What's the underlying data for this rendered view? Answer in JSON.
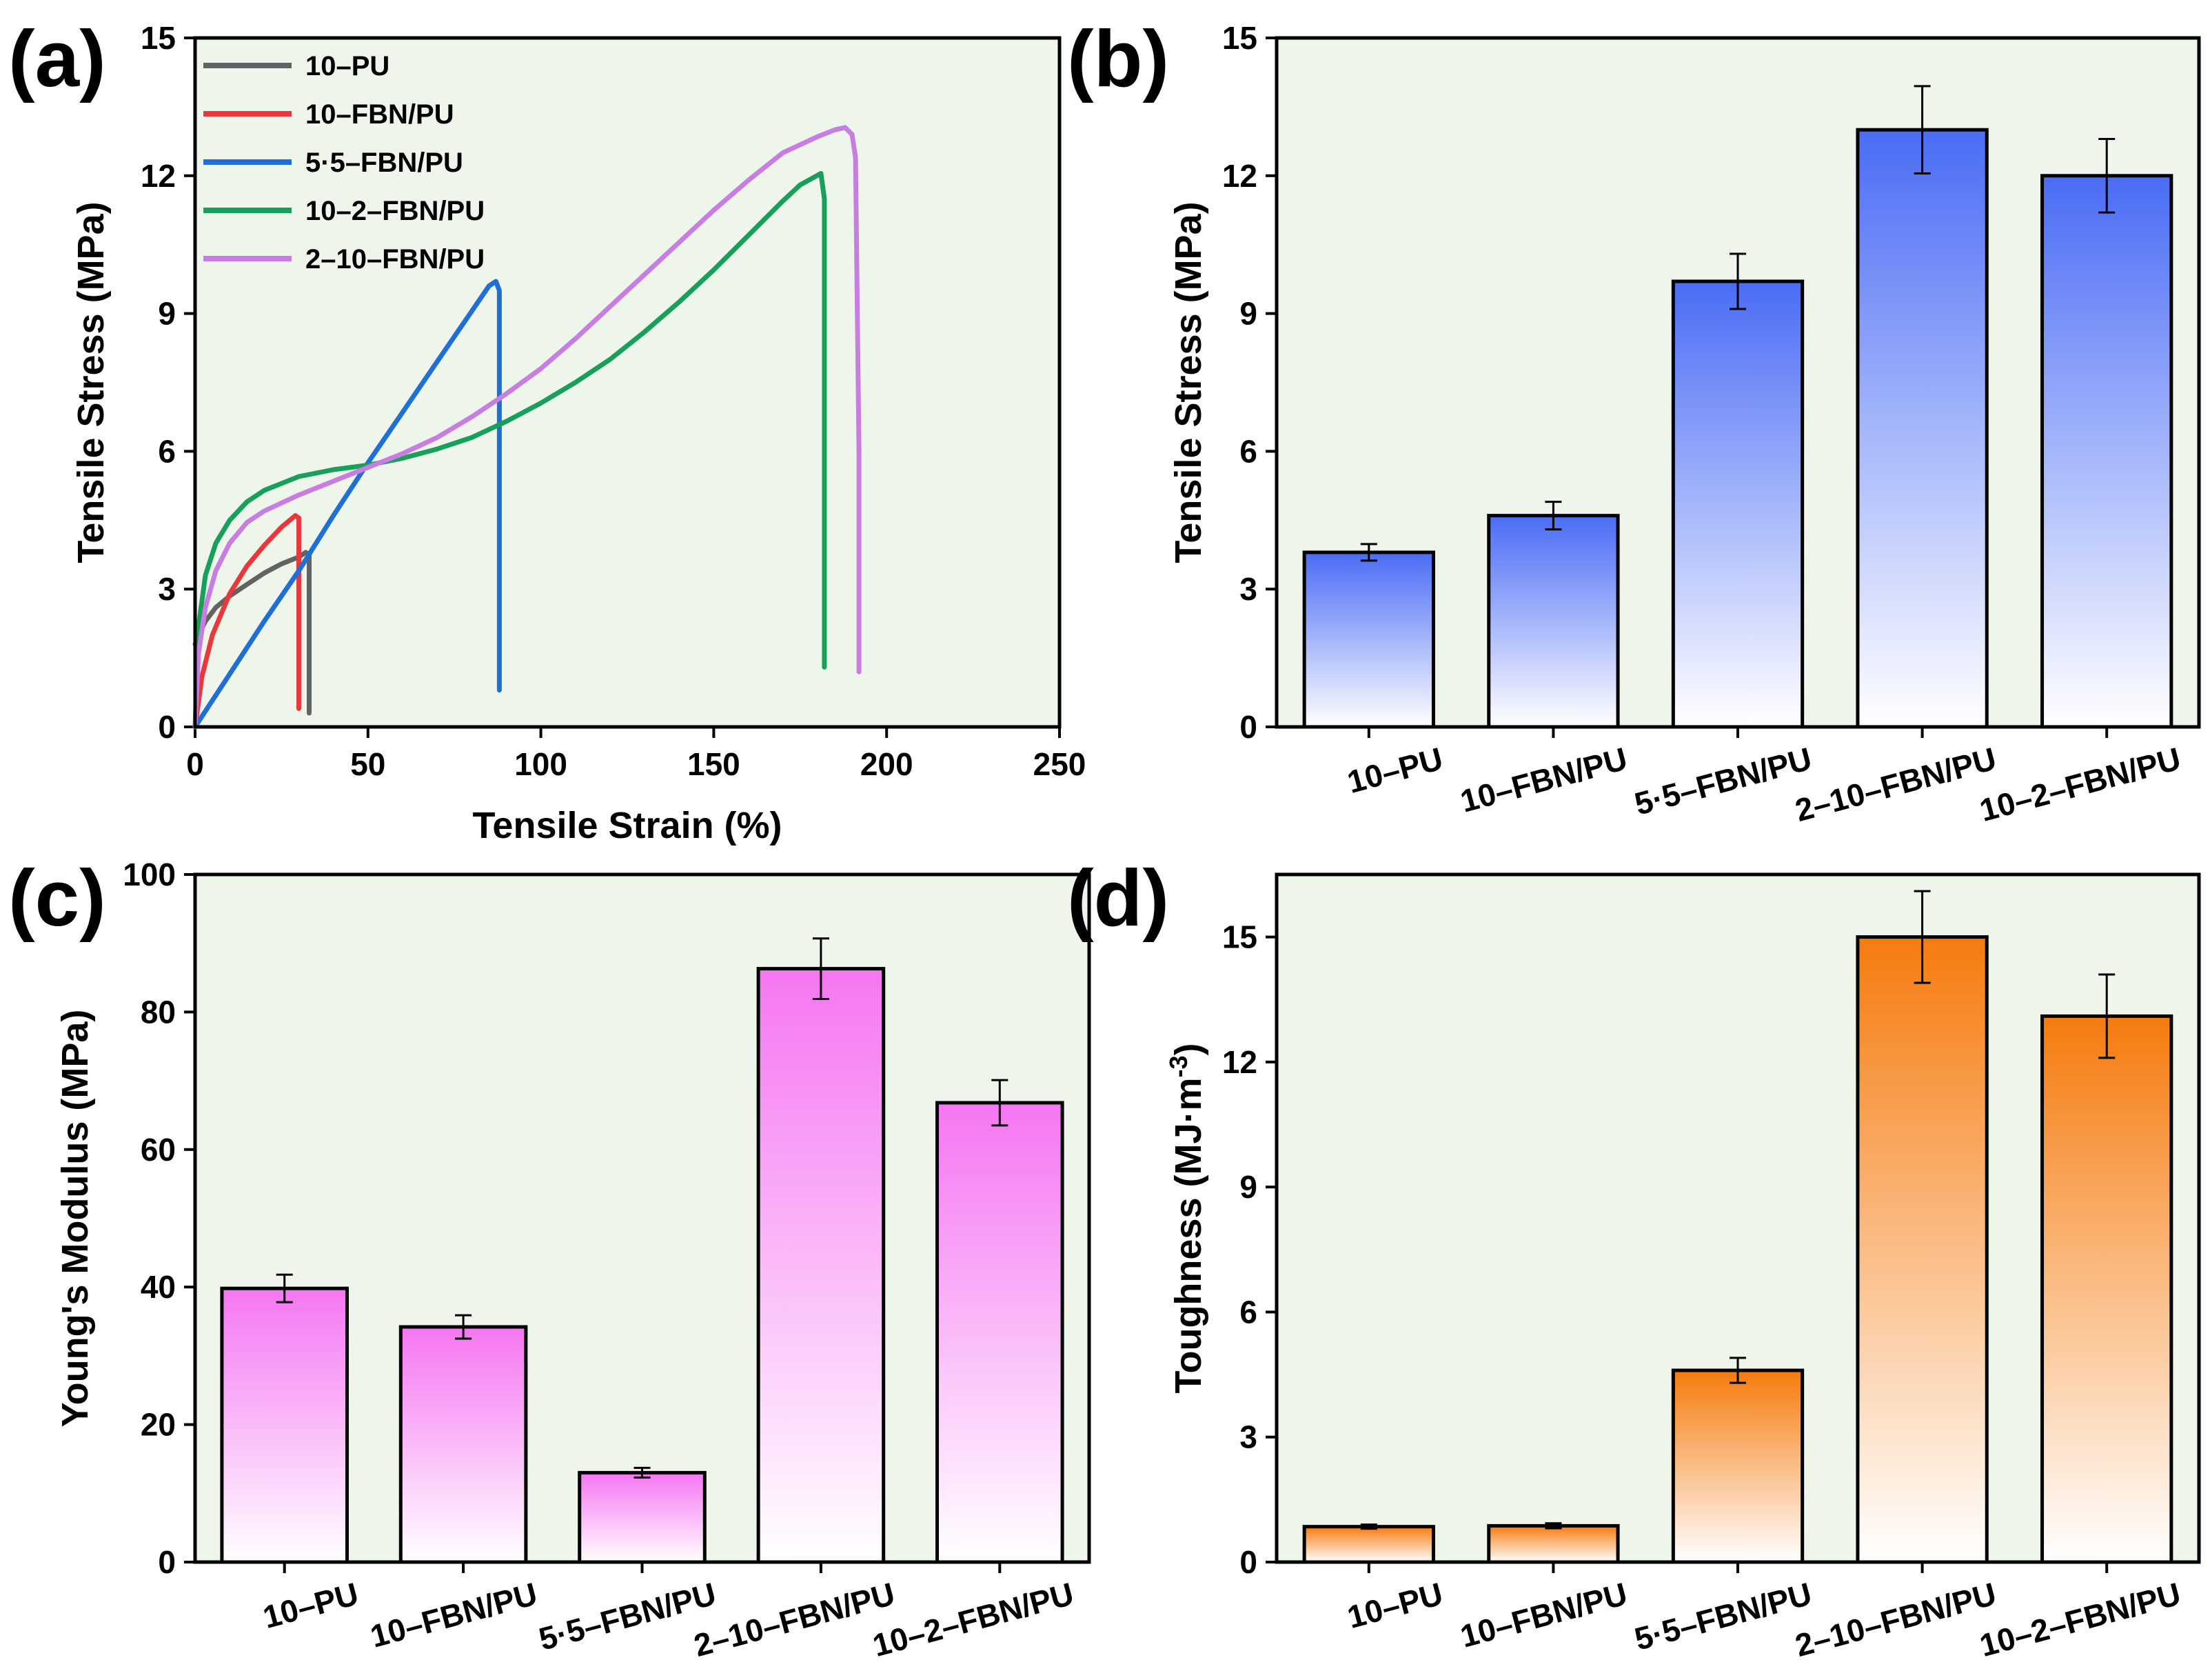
{
  "chart_data": [
    {
      "id": "a",
      "panel_label": "(a)",
      "type": "line",
      "xlabel": "Tensile Strain (%)",
      "ylabel": "Tensile Stress (MPa)",
      "xlim": [
        0,
        250
      ],
      "ylim": [
        0,
        15
      ],
      "xticks": [
        0,
        50,
        100,
        150,
        200,
        250
      ],
      "yticks": [
        0,
        3,
        6,
        9,
        12,
        15
      ],
      "legend_position": "top-left",
      "series": [
        {
          "name": "10–PU",
          "color": "#636363",
          "x": [
            0,
            1,
            3,
            6,
            10,
            15,
            20,
            25,
            30,
            32,
            33,
            33,
            33
          ],
          "y": [
            1.8,
            2.0,
            2.3,
            2.6,
            2.85,
            3.1,
            3.35,
            3.55,
            3.7,
            3.8,
            3.75,
            2.0,
            0.3
          ]
        },
        {
          "name": "10–FBN/PU",
          "color": "#e8383b",
          "x": [
            0,
            2,
            5,
            10,
            15,
            20,
            25,
            29,
            30,
            30,
            30
          ],
          "y": [
            0,
            1.1,
            2.0,
            2.9,
            3.5,
            3.95,
            4.35,
            4.6,
            4.55,
            2.0,
            0.4
          ]
        },
        {
          "name": "5·5–FBN/PU",
          "color": "#1f6fd4",
          "x": [
            0,
            10,
            20,
            30,
            40,
            50,
            60,
            70,
            80,
            85,
            87,
            88,
            88,
            88
          ],
          "y": [
            0,
            1.15,
            2.3,
            3.4,
            4.6,
            5.75,
            6.85,
            7.95,
            9.05,
            9.6,
            9.7,
            9.5,
            5.0,
            0.8
          ]
        },
        {
          "name": "10–2–FBN/PU",
          "color": "#18a05a",
          "x": [
            0,
            1,
            3,
            6,
            10,
            15,
            20,
            30,
            40,
            50,
            60,
            70,
            80,
            90,
            100,
            110,
            120,
            130,
            140,
            150,
            160,
            170,
            175,
            181,
            182,
            182,
            182
          ],
          "y": [
            0,
            2.2,
            3.3,
            4.0,
            4.5,
            4.9,
            5.15,
            5.45,
            5.6,
            5.7,
            5.85,
            6.05,
            6.3,
            6.65,
            7.05,
            7.5,
            8.0,
            8.6,
            9.25,
            9.95,
            10.7,
            11.45,
            11.8,
            12.05,
            11.5,
            6.0,
            1.3
          ]
        },
        {
          "name": "2–10–FBN/PU",
          "color": "#c77ee0",
          "x": [
            0,
            1,
            3,
            6,
            10,
            15,
            20,
            30,
            40,
            50,
            60,
            70,
            80,
            90,
            100,
            110,
            120,
            130,
            140,
            150,
            160,
            170,
            180,
            185,
            188,
            190,
            191,
            192,
            192
          ],
          "y": [
            0,
            1.6,
            2.6,
            3.4,
            4.0,
            4.45,
            4.7,
            5.05,
            5.35,
            5.65,
            5.95,
            6.3,
            6.75,
            7.25,
            7.8,
            8.45,
            9.15,
            9.85,
            10.55,
            11.25,
            11.9,
            12.5,
            12.85,
            13.0,
            13.05,
            12.9,
            12.4,
            6.0,
            1.2
          ]
        }
      ]
    },
    {
      "id": "b",
      "panel_label": "(b)",
      "type": "bar",
      "ylabel": "Tensile Stress (MPa)",
      "ylim": [
        0,
        15
      ],
      "yticks": [
        0,
        3,
        6,
        9,
        12,
        15
      ],
      "categories": [
        "10–PU",
        "10–FBN/PU",
        "5·5–FBN/PU",
        "2–10–FBN/PU",
        "10–2–FBN/PU"
      ],
      "values": [
        3.8,
        4.6,
        9.7,
        13.0,
        12.0
      ],
      "errors": [
        0.18,
        0.3,
        0.6,
        0.95,
        0.8
      ],
      "color": "#4a6cf5"
    },
    {
      "id": "c",
      "panel_label": "(c)",
      "type": "bar",
      "ylabel": "Young's Modulus (MPa)",
      "ylim": [
        0,
        100
      ],
      "yticks": [
        0,
        20,
        40,
        60,
        80,
        100
      ],
      "categories": [
        "10–PU",
        "10–FBN/PU",
        "5·5–FBN/PU",
        "2–10–FBN/PU",
        "10–2–FBN/PU"
      ],
      "values": [
        39.8,
        34.2,
        13.0,
        86.3,
        66.8
      ],
      "errors": [
        2.0,
        1.7,
        0.7,
        4.4,
        3.3
      ],
      "color": "#f576f2"
    },
    {
      "id": "d",
      "panel_label": "(d)",
      "type": "bar",
      "ylabel": "Toughness (MJ·m",
      "ylabel_sup": "-3",
      "ylabel_end": ")",
      "ylim": [
        0,
        16.5
      ],
      "yticks": [
        0,
        3,
        6,
        9,
        12,
        15
      ],
      "categories": [
        "10–PU",
        "10–FBN/PU",
        "5·5–FBN/PU",
        "2–10–FBN/PU",
        "10–2–FBN/PU"
      ],
      "values": [
        0.85,
        0.87,
        4.6,
        15.0,
        13.1
      ],
      "errors": [
        0.05,
        0.06,
        0.3,
        1.1,
        1.0
      ],
      "color": "#f57b0e"
    }
  ]
}
